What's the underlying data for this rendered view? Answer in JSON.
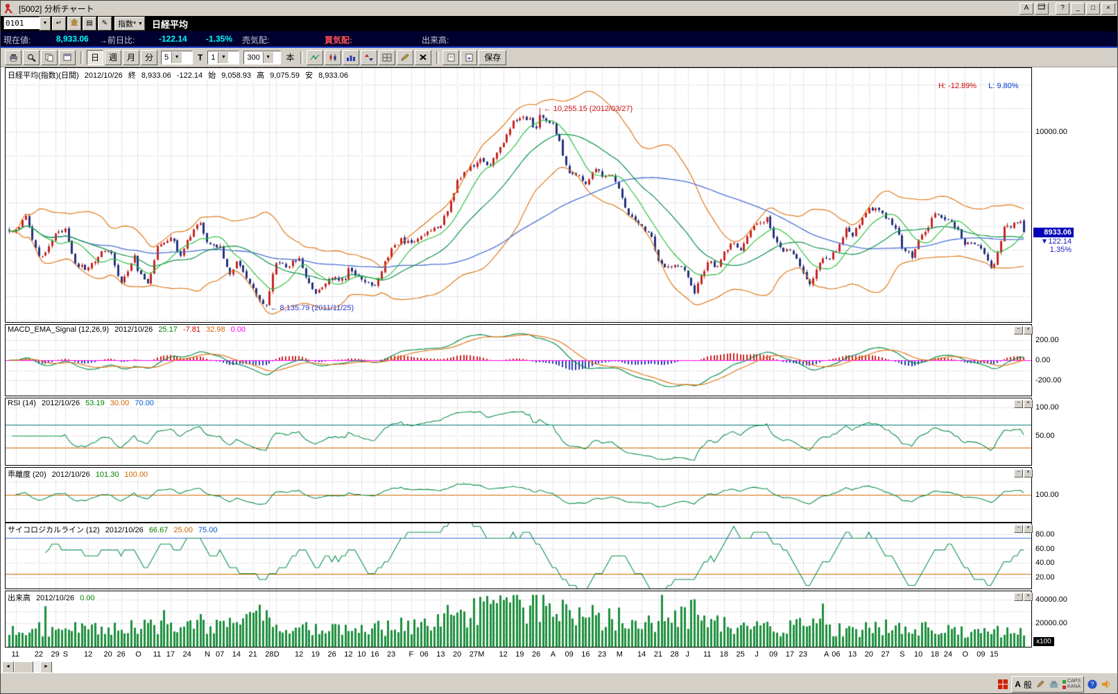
{
  "window": {
    "title": "[5002] 分析チャート",
    "btn_a": "A",
    "btn_help": "?",
    "btn_min": "_",
    "btn_max": "□",
    "btn_close": "×"
  },
  "toolbar_top": {
    "code_value": "0101",
    "enter_glyph": "↵",
    "fav_glyph": "金",
    "list_glyph": "▤",
    "edit_glyph": "✎",
    "index_label": "指数*",
    "symbol": "日経平均"
  },
  "quote": {
    "cur_label": "現在値:",
    "cur": "8,933.06",
    "chg_label": "→前日比:",
    "chg": "-122.14",
    "chg_pct": "-1.35%",
    "ask_label": "売気配:",
    "bid_label": "買気配:",
    "vol_label": "出来高:"
  },
  "chart_toolbar": {
    "day": "日",
    "week": "週",
    "month": "月",
    "minute": "分",
    "ma_select": "5",
    "t": "T",
    "interval": "1",
    "bars": "300",
    "bars_unit": "本",
    "save": "保存"
  },
  "panel_buttons": {
    "min": "−",
    "close": "×"
  },
  "scrollbar": {
    "left": "◄",
    "right": "►"
  },
  "panels": {
    "price": {
      "name": "日経平均(指数)(日間)",
      "date": "2012/10/26",
      "close_l": "終",
      "close": "8,933.06",
      "chg": "-122.14",
      "open_l": "始",
      "open": "9,058.93",
      "high_l": "高",
      "high": "9,075.59",
      "low_l": "安",
      "low": "8,933.06",
      "h_label": "H: -12.89%",
      "l_label": "L: 9.80%",
      "axis": [
        "10000.00"
      ],
      "tag": "8933.06",
      "tag_chg": "▼122.14",
      "tag_pct": "1.35%",
      "peak": "← 10,255.15 (2012/03/27)",
      "trough": "← 8,135.79 (2011/11/25)"
    },
    "macd": {
      "title": "MACD_EMA_Signal (12,26,9)",
      "date": "2012/10/26",
      "v_macd": "25.17",
      "v_hist": "-7.81",
      "v_signal": "32.98",
      "v_zero": "0.00",
      "axis": [
        "200.00",
        "0.00",
        "-200.00"
      ]
    },
    "rsi": {
      "title": "RSI (14)",
      "date": "2012/10/26",
      "v": "53.19",
      "v_low": "30.00",
      "v_high": "70.00",
      "axis": [
        "100.00",
        "50.00"
      ]
    },
    "kairi": {
      "title": "乖離度 (20)",
      "date": "2012/10/26",
      "v": "101.30",
      "v_base": "100.00",
      "axis": [
        "100.00"
      ]
    },
    "psych": {
      "title": "サイコロジカルライン (12)",
      "date": "2012/10/26",
      "v": "66.67",
      "v_low": "25.00",
      "v_high": "75.00",
      "axis": [
        "80.00",
        "60.00",
        "40.00",
        "20.00"
      ]
    },
    "volume": {
      "title": "出来高",
      "date": "2012/10/26",
      "v": "0.00",
      "axis": [
        "40000.00",
        "20000.00"
      ],
      "unit": "x100"
    }
  },
  "ime": {
    "a": "A",
    "gen": "般",
    "caps": "CAPS",
    "kana": "KANA"
  },
  "chart_data": {
    "type": "candlestick+indicators",
    "instrument": "日経平均 (Nikkei 225, daily)",
    "date_range": "2011-08 to 2012-10-26",
    "n_days": 309,
    "price_noise": 26,
    "price_anchors": [
      [
        0,
        8944
      ],
      [
        2,
        8963
      ],
      [
        5,
        9086
      ],
      [
        9,
        8650
      ],
      [
        12,
        8790
      ],
      [
        14,
        8913
      ],
      [
        17,
        8950
      ],
      [
        20,
        8590
      ],
      [
        24,
        8536
      ],
      [
        28,
        8741
      ],
      [
        31,
        8700
      ],
      [
        34,
        8374
      ],
      [
        38,
        8700
      ],
      [
        39,
        8545
      ],
      [
        42,
        8382
      ],
      [
        45,
        8773
      ],
      [
        49,
        8880
      ],
      [
        52,
        8682
      ],
      [
        54,
        8844
      ],
      [
        58,
        9050
      ],
      [
        60,
        8835
      ],
      [
        64,
        8767
      ],
      [
        67,
        8500
      ],
      [
        69,
        8603
      ],
      [
        74,
        8348
      ],
      [
        77,
        8165
      ],
      [
        78,
        8160
      ],
      [
        80,
        8477
      ],
      [
        81,
        8597
      ],
      [
        84,
        8575
      ],
      [
        88,
        8653
      ],
      [
        91,
        8377
      ],
      [
        93,
        8300
      ],
      [
        96,
        8395
      ],
      [
        98,
        8440
      ],
      [
        102,
        8455
      ],
      [
        103,
        8560
      ],
      [
        107,
        8422
      ],
      [
        111,
        8378
      ],
      [
        116,
        8765
      ],
      [
        119,
        8849
      ],
      [
        122,
        8810
      ],
      [
        126,
        8929
      ],
      [
        131,
        8999
      ],
      [
        134,
        9260
      ],
      [
        136,
        9485
      ],
      [
        139,
        9595
      ],
      [
        141,
        9647
      ],
      [
        143,
        9707
      ],
      [
        146,
        9637
      ],
      [
        150,
        9890
      ],
      [
        153,
        10123
      ],
      [
        155,
        10141
      ],
      [
        158,
        10127
      ],
      [
        160,
        10018
      ],
      [
        161,
        10182
      ],
      [
        164,
        10084
      ],
      [
        165,
        10110
      ],
      [
        168,
        9768
      ],
      [
        170,
        9546
      ],
      [
        173,
        9524
      ],
      [
        175,
        9471
      ],
      [
        178,
        9589
      ],
      [
        180,
        9542
      ],
      [
        183,
        9521
      ],
      [
        185,
        9380
      ],
      [
        188,
        9119
      ],
      [
        192,
        8973
      ],
      [
        195,
        8877
      ],
      [
        197,
        8633
      ],
      [
        200,
        8563
      ],
      [
        202,
        8593
      ],
      [
        205,
        8543
      ],
      [
        206,
        8440
      ],
      [
        208,
        8295
      ],
      [
        212,
        8624
      ],
      [
        215,
        8568
      ],
      [
        217,
        8721
      ],
      [
        220,
        8824
      ],
      [
        222,
        8734
      ],
      [
        226,
        9007
      ],
      [
        227,
        9003
      ],
      [
        230,
        9079
      ],
      [
        232,
        8896
      ],
      [
        235,
        8720
      ],
      [
        237,
        8755
      ],
      [
        241,
        8508
      ],
      [
        243,
        8365
      ],
      [
        246,
        8635
      ],
      [
        248,
        8641
      ],
      [
        251,
        8726
      ],
      [
        254,
        8978
      ],
      [
        256,
        8885
      ],
      [
        259,
        9093
      ],
      [
        261,
        9171
      ],
      [
        264,
        9178
      ],
      [
        266,
        9085
      ],
      [
        269,
        8983
      ],
      [
        271,
        8783
      ],
      [
        274,
        8680
      ],
      [
        276,
        8870
      ],
      [
        279,
        8995
      ],
      [
        281,
        9159
      ],
      [
        283,
        9086
      ],
      [
        285,
        9069
      ],
      [
        288,
        8949
      ],
      [
        290,
        8796
      ],
      [
        293,
        8824
      ],
      [
        295,
        8769
      ],
      [
        298,
        8534
      ],
      [
        299,
        8577
      ],
      [
        302,
        8983
      ],
      [
        305,
        9014
      ],
      [
        307,
        9055
      ],
      [
        308,
        8933.06
      ]
    ],
    "pin_closes": [
      [
        0,
        8944
      ],
      [
        78,
        8160
      ],
      [
        161,
        10182
      ],
      [
        308,
        8933.06
      ]
    ],
    "peak": {
      "day": 161,
      "value": 10255.15,
      "date": "2012/03/27"
    },
    "trough": {
      "day": 78,
      "value": 8135.79,
      "date": "2011/11/25"
    },
    "last_candle": {
      "o": 9058.93,
      "h": 9075.59,
      "l": 8933.06,
      "c": 8933.06
    },
    "volume_anchors": [
      [
        0,
        17000
      ],
      [
        20,
        14000
      ],
      [
        40,
        16000
      ],
      [
        60,
        18000
      ],
      [
        78,
        22000
      ],
      [
        90,
        15000
      ],
      [
        105,
        13000
      ],
      [
        122,
        19000
      ],
      [
        135,
        26000
      ],
      [
        145,
        30000
      ],
      [
        155,
        33000
      ],
      [
        161,
        36000
      ],
      [
        168,
        30000
      ],
      [
        175,
        26000
      ],
      [
        185,
        24000
      ],
      [
        195,
        22000
      ],
      [
        208,
        28000
      ],
      [
        215,
        18000
      ],
      [
        226,
        16000
      ],
      [
        235,
        15000
      ],
      [
        243,
        18000
      ],
      [
        255,
        14000
      ],
      [
        265,
        17000
      ],
      [
        275,
        15000
      ],
      [
        285,
        14000
      ],
      [
        295,
        13000
      ],
      [
        305,
        12000
      ],
      [
        308,
        11000
      ]
    ],
    "month_start_days": [
      17,
      39,
      60,
      81,
      103,
      122,
      143,
      165,
      185,
      206,
      227,
      248,
      271,
      290
    ],
    "x_labels": [
      [
        "11",
        2
      ],
      [
        "22",
        9
      ],
      [
        "29",
        14
      ],
      [
        "S",
        17
      ],
      [
        "12",
        24
      ],
      [
        "20",
        30
      ],
      [
        "26",
        34
      ],
      [
        "O",
        39
      ],
      [
        "11",
        45
      ],
      [
        "17",
        49
      ],
      [
        "24",
        54
      ],
      [
        "N",
        60
      ],
      [
        "07",
        64
      ],
      [
        "14",
        69
      ],
      [
        "21",
        74
      ],
      [
        "28",
        79
      ],
      [
        "D",
        81
      ],
      [
        "12",
        88
      ],
      [
        "19",
        93
      ],
      [
        "26",
        98
      ],
      [
        "12",
        103
      ],
      [
        "10",
        107
      ],
      [
        "16",
        111
      ],
      [
        "23",
        116
      ],
      [
        "F",
        122
      ],
      [
        "06",
        126
      ],
      [
        "13",
        131
      ],
      [
        "20",
        136
      ],
      [
        "27",
        141
      ],
      [
        "M",
        143
      ],
      [
        "12",
        150
      ],
      [
        "19",
        155
      ],
      [
        "26",
        160
      ],
      [
        "A",
        165
      ],
      [
        "09",
        170
      ],
      [
        "16",
        175
      ],
      [
        "23",
        180
      ],
      [
        "M",
        185
      ],
      [
        "14",
        192
      ],
      [
        "21",
        197
      ],
      [
        "28",
        202
      ],
      [
        "J",
        206
      ],
      [
        "11",
        212
      ],
      [
        "18",
        217
      ],
      [
        "25",
        222
      ],
      [
        "J",
        227
      ],
      [
        "09",
        232
      ],
      [
        "17",
        237
      ],
      [
        "23",
        241
      ],
      [
        "A",
        248
      ],
      [
        "06",
        251
      ],
      [
        "13",
        256
      ],
      [
        "20",
        261
      ],
      [
        "27",
        266
      ],
      [
        "S",
        271
      ],
      [
        "10",
        276
      ],
      [
        "18",
        281
      ],
      [
        "24",
        285
      ],
      [
        "O",
        290
      ],
      [
        "09",
        295
      ],
      [
        "15",
        299
      ]
    ],
    "indicators": {
      "ma_fast": 10,
      "ma_mid": 25,
      "ma_slow": 75,
      "bollinger": [
        25,
        2
      ],
      "macd": [
        12,
        26,
        9
      ],
      "rsi": 14,
      "kairi": 20,
      "psych": 12
    },
    "colors": {
      "up": "#c62420",
      "down": "#24307e",
      "ma_fast": "#2fbf3f",
      "ma_mid": "#0b8f4a",
      "ma_slow": "#4a6fd4",
      "band": "#e07818",
      "macd": "#0b8f4a",
      "signal": "#e07818",
      "hist_pos": "#cc2020",
      "hist_neg": "#2a3ab0",
      "zero": "#ff00ff",
      "rsi": "#0b8f4a",
      "rsi_high": "#007878",
      "rsi_low": "#cc6600",
      "kairi": "#0b8f4a",
      "kairi_base": "#cc6600",
      "psych": "#0b8f4a",
      "psych_high": "#3a6ad4",
      "psych_low": "#cc6600",
      "volume": "#1d8f3c",
      "grid": "#b4b4c8"
    }
  }
}
